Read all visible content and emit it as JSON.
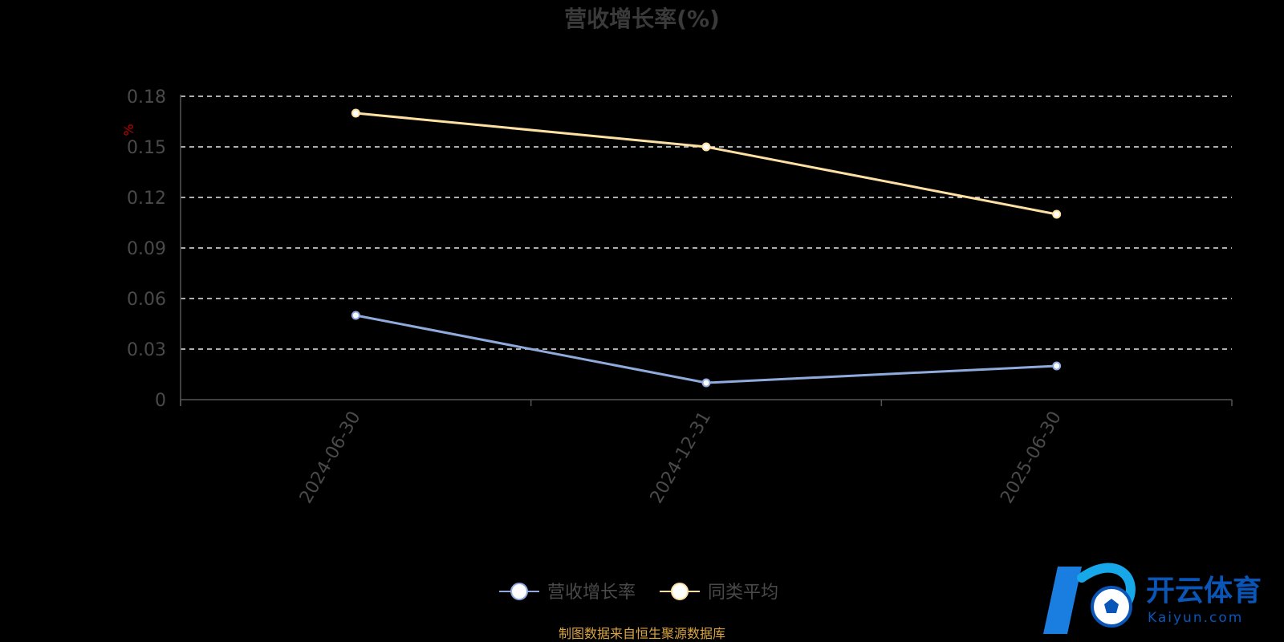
{
  "chart_data": {
    "type": "line",
    "title": "营收增长率(%)",
    "unit_label": "%",
    "categories": [
      "2024-06-30",
      "2024-12-31",
      "2025-06-30"
    ],
    "y_ticks": [
      "0",
      "0.03",
      "0.06",
      "0.09",
      "0.12",
      "0.15",
      "0.18"
    ],
    "ylim": [
      0,
      0.18
    ],
    "grid": true,
    "legend_position": "bottom-center",
    "series": [
      {
        "name": "营收增长率",
        "values": [
          0.05,
          0.01,
          0.02
        ],
        "color": "#8faadc"
      },
      {
        "name": "同类平均",
        "values": [
          0.17,
          0.15,
          0.11
        ],
        "color": "#ffe0a3"
      }
    ]
  },
  "source_text": "制图数据来自恒生聚源数据库",
  "watermark": {
    "brand": "开云体育",
    "domain": "Kaiyun.com",
    "icon": "soccer-ball-logo-icon"
  }
}
